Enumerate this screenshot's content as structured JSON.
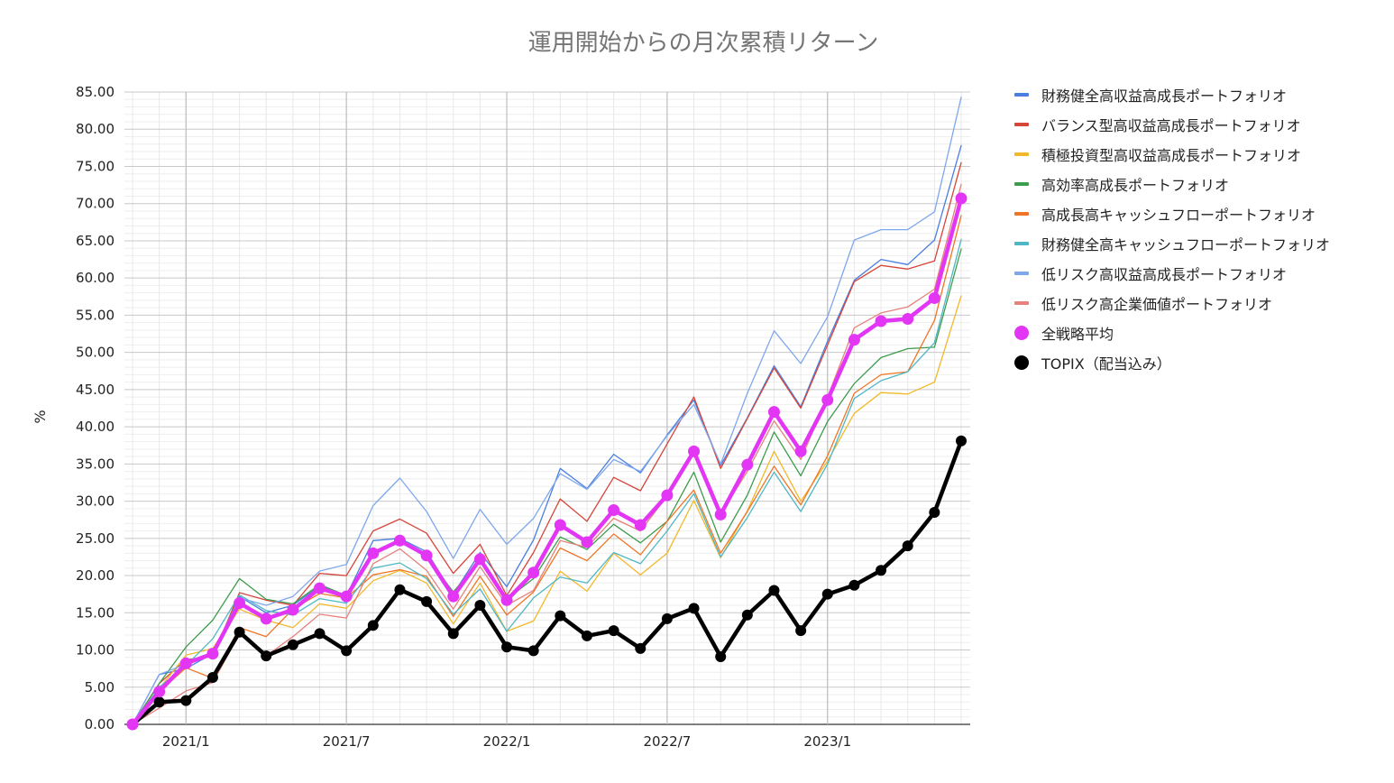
{
  "chart_data": {
    "type": "line",
    "title": "運用開始からの月次累積リターン",
    "xlabel": "",
    "ylabel": "%",
    "ylim": [
      0,
      85
    ],
    "y_ticks": [
      "0.00",
      "5.00",
      "10.00",
      "15.00",
      "20.00",
      "25.00",
      "30.00",
      "35.00",
      "40.00",
      "45.00",
      "50.00",
      "55.00",
      "60.00",
      "65.00",
      "70.00",
      "75.00",
      "80.00",
      "85.00"
    ],
    "x_tick_labels": [
      {
        "index": 2,
        "label": "2021/1"
      },
      {
        "index": 8,
        "label": "2021/7"
      },
      {
        "index": 14,
        "label": "2022/1"
      },
      {
        "index": 20,
        "label": "2022/7"
      },
      {
        "index": 26,
        "label": "2023/1"
      }
    ],
    "x": [
      "2020/11",
      "2020/12",
      "2021/1",
      "2021/2",
      "2021/3",
      "2021/4",
      "2021/5",
      "2021/6",
      "2021/7",
      "2021/8",
      "2021/9",
      "2021/10",
      "2021/11",
      "2021/12",
      "2022/1",
      "2022/2",
      "2022/3",
      "2022/4",
      "2022/5",
      "2022/6",
      "2022/7",
      "2022/8",
      "2022/9",
      "2022/10",
      "2022/11",
      "2022/12",
      "2023/1",
      "2023/2",
      "2023/3",
      "2023/4",
      "2023/5",
      "2023/6"
    ],
    "series": [
      {
        "name": "財務健全高収益高成長ポートフォリオ",
        "color": "#4a7fdf",
        "style": "thin",
        "values": [
          0,
          6.7,
          7.5,
          9.5,
          17.2,
          15.0,
          16.0,
          18.6,
          17.3,
          24.7,
          25.0,
          23.2,
          17.5,
          23.1,
          18.5,
          24.8,
          34.4,
          31.7,
          36.3,
          33.8,
          38.9,
          43.6,
          34.8,
          41.2,
          48.2,
          42.7,
          51.5,
          59.7,
          62.5,
          61.8,
          65.1,
          77.8
        ]
      },
      {
        "name": "バランス型高収益高成長ポートフォリオ",
        "color": "#d6453a",
        "style": "thin",
        "values": [
          0,
          5.5,
          8.7,
          9.1,
          17.7,
          16.7,
          16.0,
          20.3,
          20.0,
          26.0,
          27.6,
          25.7,
          20.3,
          24.2,
          17.3,
          23.1,
          30.3,
          27.3,
          33.2,
          31.4,
          37.7,
          44.0,
          34.4,
          41.1,
          47.9,
          42.5,
          51.0,
          59.5,
          61.7,
          61.2,
          62.3,
          75.5
        ]
      },
      {
        "name": "積極投資型高収益高成長ポートフォリオ",
        "color": "#f1b92a",
        "style": "thin",
        "values": [
          0,
          4.8,
          9.3,
          10.2,
          15.5,
          14.0,
          13.0,
          16.2,
          15.6,
          19.3,
          20.7,
          19.0,
          13.5,
          19.0,
          12.5,
          13.9,
          20.6,
          17.9,
          23.0,
          20.1,
          23.0,
          30.1,
          22.4,
          28.7,
          36.7,
          30.0,
          35.4,
          41.8,
          44.6,
          44.4,
          46.0,
          57.6
        ]
      },
      {
        "name": "高効率高成長ポートフォリオ",
        "color": "#3e9c4e",
        "style": "thin",
        "values": [
          0,
          5.5,
          10.4,
          14.0,
          19.6,
          16.8,
          16.2,
          18.8,
          17.3,
          23.1,
          24.6,
          22.5,
          17.8,
          22.0,
          16.8,
          19.6,
          25.2,
          23.5,
          26.9,
          24.4,
          27.3,
          33.9,
          24.5,
          30.8,
          39.3,
          33.4,
          40.7,
          45.8,
          49.3,
          50.5,
          50.7,
          63.9
        ]
      },
      {
        "name": "高成長高キャッシュフローポートフォリオ",
        "color": "#ee7526",
        "style": "thin",
        "values": [
          0,
          4.4,
          7.6,
          6.2,
          13.0,
          11.8,
          15.5,
          17.6,
          17.0,
          20.1,
          20.8,
          19.9,
          14.5,
          19.9,
          14.7,
          17.8,
          23.7,
          22.0,
          25.6,
          22.8,
          27.3,
          31.5,
          23.0,
          28.6,
          34.7,
          29.5,
          36.1,
          44.5,
          47.0,
          47.4,
          54.3,
          68.4
        ]
      },
      {
        "name": "財務健全高キャッシュフローポートフォリオ",
        "color": "#4fb7c4",
        "style": "thin",
        "values": [
          0,
          5.0,
          7.9,
          11.5,
          17.4,
          15.3,
          14.7,
          16.9,
          16.3,
          21.0,
          21.7,
          19.6,
          14.8,
          18.2,
          12.5,
          17.0,
          19.8,
          19.0,
          23.1,
          21.6,
          26.0,
          31.0,
          22.5,
          27.8,
          33.9,
          28.6,
          35.0,
          43.8,
          46.2,
          47.4,
          51.3,
          65.2
        ]
      },
      {
        "name": "低リスク高収益高成長ポートフォリオ",
        "color": "#7fa7ec",
        "style": "thin",
        "values": [
          0,
          6.7,
          8.1,
          9.6,
          17.0,
          16.0,
          17.2,
          20.6,
          21.5,
          29.4,
          33.1,
          28.6,
          22.3,
          28.9,
          24.2,
          27.7,
          33.7,
          31.6,
          35.6,
          34.0,
          38.8,
          43.0,
          35.0,
          44.5,
          52.9,
          48.5,
          54.8,
          65.1,
          66.5,
          66.5,
          68.9,
          84.3
        ]
      },
      {
        "name": "低リスク高企業価値ポートフォリオ",
        "color": "#e5827d",
        "style": "thin",
        "values": [
          0,
          2.2,
          4.5,
          5.6,
          12.2,
          9.2,
          11.8,
          14.8,
          14.3,
          21.6,
          23.6,
          20.7,
          15.5,
          21.2,
          16.0,
          18.0,
          24.7,
          23.8,
          27.7,
          26.0,
          30.7,
          36.6,
          28.3,
          34.0,
          40.8,
          35.6,
          44.0,
          53.3,
          55.3,
          56.1,
          58.5,
          72.6
        ]
      },
      {
        "name": "全戦略平均",
        "color": "#e336f5",
        "style": "avg",
        "values": [
          0,
          4.4,
          8.2,
          9.5,
          16.3,
          14.2,
          15.4,
          18.3,
          17.2,
          23.0,
          24.7,
          22.7,
          17.2,
          22.2,
          16.7,
          20.4,
          26.8,
          24.5,
          28.8,
          26.8,
          30.8,
          36.7,
          28.2,
          34.9,
          42.0,
          36.7,
          43.6,
          51.7,
          54.2,
          54.5,
          57.3,
          70.7
        ]
      },
      {
        "name": "TOPIX（配当込み）",
        "color": "#000000",
        "style": "topix",
        "values": [
          0,
          3.0,
          3.2,
          6.3,
          12.4,
          9.2,
          10.7,
          12.2,
          9.9,
          13.3,
          18.1,
          16.5,
          12.2,
          16.0,
          10.4,
          9.9,
          14.6,
          11.9,
          12.6,
          10.2,
          14.2,
          15.6,
          9.1,
          14.7,
          18.0,
          12.6,
          17.5,
          18.7,
          20.7,
          24.0,
          28.5,
          38.1
        ]
      }
    ]
  }
}
